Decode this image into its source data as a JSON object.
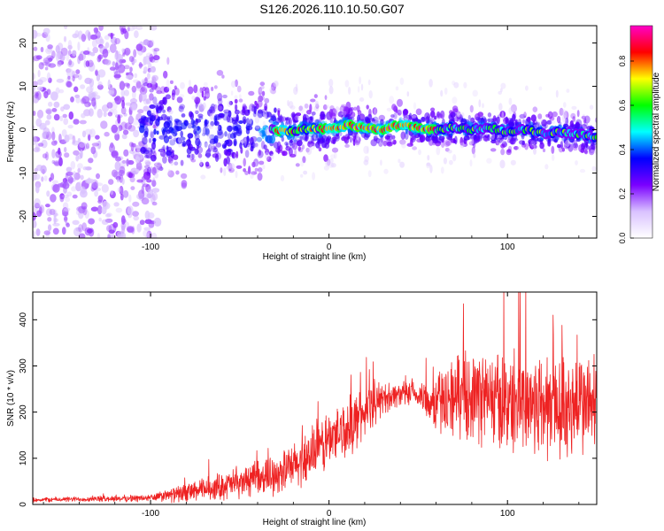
{
  "page_title": "S126.2026.110.10.50.G07",
  "chart_data": [
    {
      "type": "heatmap",
      "xlabel": "Height of straight line (km)",
      "ylabel": "Frequency (Hz)",
      "xlim": [
        -166,
        150
      ],
      "ylim": [
        -25,
        24
      ],
      "xticks": [
        -100,
        0,
        100
      ],
      "yticks": [
        -20,
        -10,
        0,
        10,
        20
      ],
      "xtick_labels": [
        "-100",
        "0",
        "100"
      ],
      "ytick_labels": [
        "-20",
        "-10",
        "0",
        "10",
        "20"
      ],
      "ridge_frequency_hz": [
        [
          -30,
          0.0
        ],
        [
          -20,
          -0.5
        ],
        [
          -10,
          0.3
        ],
        [
          0,
          0.0
        ],
        [
          10,
          1.0
        ],
        [
          20,
          0.5
        ],
        [
          30,
          0.2
        ],
        [
          40,
          1.0
        ],
        [
          50,
          0.5
        ],
        [
          60,
          0.0
        ],
        [
          70,
          0.5
        ],
        [
          80,
          0.0
        ],
        [
          90,
          0.5
        ],
        [
          100,
          -0.5
        ],
        [
          110,
          0.0
        ],
        [
          120,
          -0.8
        ],
        [
          130,
          -0.5
        ],
        [
          140,
          -1.0
        ],
        [
          150,
          -1.5
        ]
      ],
      "colorbar": {
        "label": "Normalized spectral amplitude",
        "ticks": [
          0.0,
          0.2,
          0.4,
          0.6,
          0.8
        ],
        "tick_labels": [
          "0.0",
          "0.2",
          "0.4",
          "0.6",
          "0.8"
        ],
        "range": [
          0,
          0.96
        ],
        "colors": [
          "#ffffff",
          "#d9c2ff",
          "#7a00ff",
          "#0000ff",
          "#00ffff",
          "#00ff00",
          "#ffff00",
          "#ff0000",
          "#ff00c8"
        ]
      }
    },
    {
      "type": "line",
      "xlabel": "Height of straight line (km)",
      "ylabel": "SNR (10 * v/v)",
      "xlim": [
        -166,
        150
      ],
      "ylim": [
        0,
        460
      ],
      "xticks": [
        -100,
        0,
        100
      ],
      "yticks": [
        0,
        100,
        200,
        300,
        400
      ],
      "xtick_labels": [
        "-100",
        "0",
        "100"
      ],
      "ytick_labels": [
        "0",
        "100",
        "200",
        "300",
        "400"
      ],
      "color": "#ee2222",
      "envelope": {
        "x": [
          -166,
          -130,
          -100,
          -80,
          -60,
          -40,
          -20,
          -10,
          0,
          10,
          20,
          30,
          40,
          50,
          60,
          70,
          80,
          90,
          100,
          110,
          120,
          130,
          140,
          150
        ],
        "mean": [
          10,
          12,
          14,
          25,
          40,
          55,
          80,
          110,
          140,
          165,
          200,
          230,
          240,
          235,
          220,
          235,
          240,
          230,
          220,
          225,
          215,
          210,
          220,
          215
        ],
        "spread": [
          5,
          6,
          8,
          20,
          30,
          35,
          50,
          60,
          65,
          65,
          55,
          35,
          25,
          30,
          65,
          85,
          95,
          105,
          110,
          115,
          120,
          120,
          115,
          110
        ]
      }
    }
  ]
}
